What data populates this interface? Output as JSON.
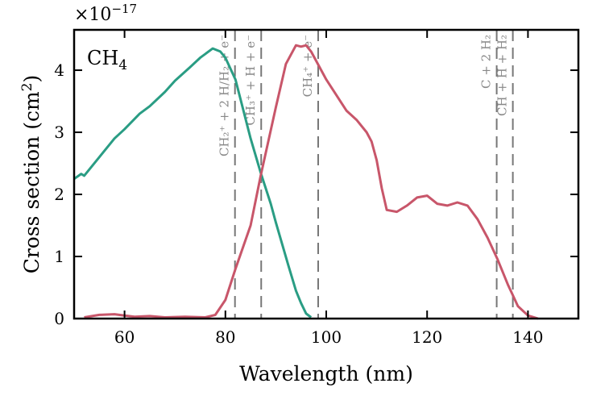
{
  "chart_data": {
    "type": "line",
    "title": "",
    "annotation": "CH",
    "annotation_sub": "4",
    "xlabel": "Wavelength (nm)",
    "ylabel": "Cross section (cm",
    "ylabel_sup": "2",
    "ylabel_end": ")",
    "y_multiplier": "×10",
    "y_multiplier_exp": "−17",
    "xlim": [
      50,
      150
    ],
    "ylim": [
      0,
      4.65
    ],
    "xticks": [
      60,
      80,
      100,
      120,
      140
    ],
    "yticks": [
      0,
      1,
      2,
      3,
      4
    ],
    "grid": false,
    "series": [
      {
        "color": "#2a9d84",
        "x": [
          50,
          51.4,
          52,
          55,
          58,
          60,
          63,
          65,
          68,
          70,
          73,
          75,
          77.5,
          79,
          80,
          82,
          85,
          87,
          89,
          90,
          92.5,
          94,
          95,
          96,
          97
        ],
        "y": [
          2.25,
          2.33,
          2.3,
          2.6,
          2.9,
          3.05,
          3.3,
          3.42,
          3.65,
          3.83,
          4.05,
          4.2,
          4.35,
          4.3,
          4.2,
          3.85,
          2.9,
          2.35,
          1.85,
          1.55,
          0.85,
          0.45,
          0.25,
          0.08,
          0.02
        ]
      },
      {
        "color": "#c8566a",
        "x": [
          52,
          55,
          58,
          60,
          62,
          65,
          68,
          72,
          76,
          78,
          80,
          82,
          85,
          87,
          90,
          92,
          94,
          95,
          96,
          97,
          98,
          100,
          102,
          104,
          106,
          108,
          109,
          110,
          111,
          112,
          114,
          116,
          118,
          120,
          122,
          124,
          126,
          128,
          130,
          132,
          134,
          136,
          138,
          140,
          142
        ],
        "y": [
          0.02,
          0.06,
          0.07,
          0.05,
          0.03,
          0.04,
          0.02,
          0.03,
          0.02,
          0.06,
          0.3,
          0.8,
          1.5,
          2.3,
          3.4,
          4.1,
          4.4,
          4.38,
          4.4,
          4.3,
          4.15,
          3.85,
          3.6,
          3.35,
          3.2,
          3.0,
          2.85,
          2.55,
          2.1,
          1.75,
          1.72,
          1.82,
          1.95,
          1.98,
          1.85,
          1.82,
          1.87,
          1.82,
          1.6,
          1.3,
          0.95,
          0.55,
          0.2,
          0.05,
          0.0
        ]
      }
    ],
    "thresholds": [
      {
        "x": 81.9,
        "label": "CH₂⁺ + 2 H/H₂ + e⁻"
      },
      {
        "x": 87.1,
        "label": "CH₃⁺ + H + e⁻"
      },
      {
        "x": 98.4,
        "label": "CH₄⁺ + e⁻"
      },
      {
        "x": 133.8,
        "label": "C + 2 H₂"
      },
      {
        "x": 137.0,
        "label": "CH + H + H₂"
      }
    ]
  }
}
